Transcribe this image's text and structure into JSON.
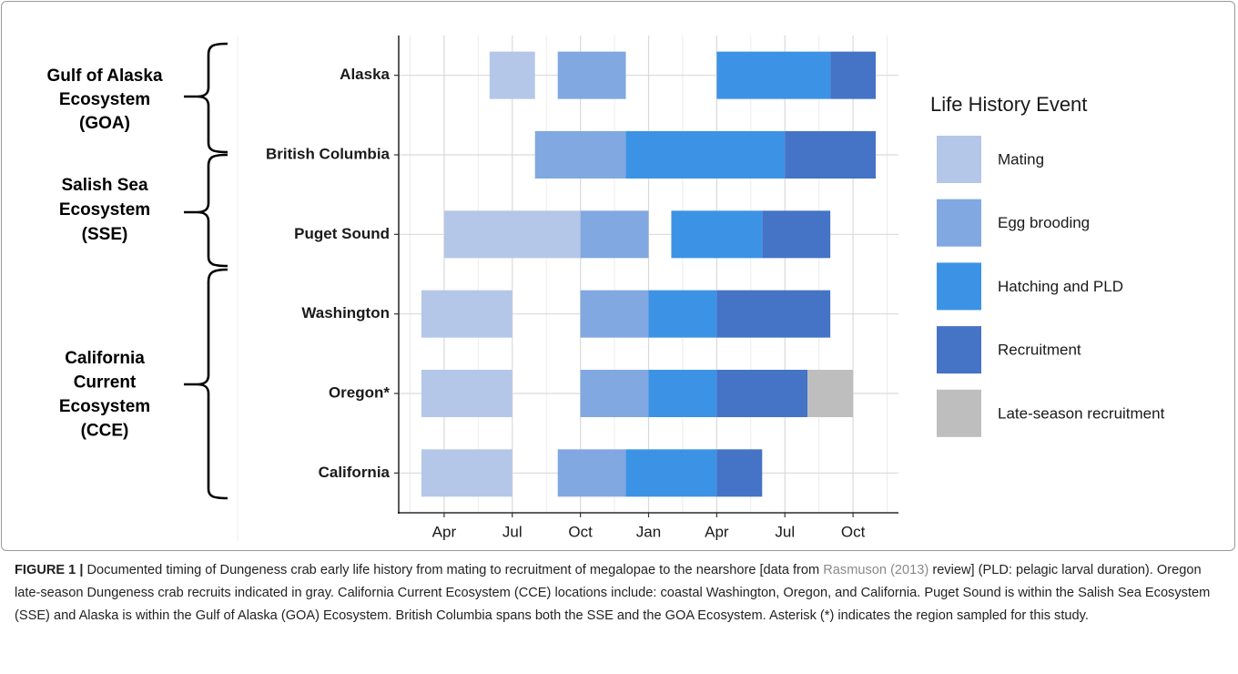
{
  "chart_data": {
    "type": "gantt",
    "categories": [
      "Alaska",
      "British Columbia",
      "Puget Sound",
      "Washington",
      "Oregon*",
      "California"
    ],
    "series": [
      {
        "name": "Mating",
        "color": "#b4c7e8",
        "values": [
          [
            5,
            7
          ],
          null,
          [
            3,
            9
          ],
          [
            2,
            6
          ],
          [
            2,
            6
          ],
          [
            2,
            6
          ]
        ]
      },
      {
        "name": "Egg brooding",
        "color": "#81a8e0",
        "values": [
          [
            8,
            11
          ],
          [
            7,
            11
          ],
          [
            9,
            12
          ],
          [
            9,
            12
          ],
          [
            9,
            12
          ],
          [
            8,
            11
          ]
        ]
      },
      {
        "name": "Hatching and PLD",
        "color": "#3c93e5",
        "values": [
          [
            15,
            20
          ],
          [
            11,
            18
          ],
          [
            13,
            17
          ],
          [
            12,
            15
          ],
          [
            12,
            15
          ],
          [
            11,
            15
          ]
        ]
      },
      {
        "name": "Recruitment",
        "color": "#4573c6",
        "values": [
          [
            20,
            22
          ],
          [
            18,
            22
          ],
          [
            17,
            20
          ],
          [
            15,
            20
          ],
          [
            15,
            19
          ],
          [
            15,
            17
          ]
        ]
      },
      {
        "name": "Late-season recruitment",
        "color": "#bebebe",
        "values": [
          null,
          null,
          null,
          null,
          [
            19,
            21
          ],
          null
        ]
      }
    ],
    "xlim": [
      1,
      23
    ],
    "xticks": [
      {
        "value": 3,
        "label": "Apr"
      },
      {
        "value": 6,
        "label": "Jul"
      },
      {
        "value": 9,
        "label": "Oct"
      },
      {
        "value": 12,
        "label": "Jan"
      },
      {
        "value": 15,
        "label": "Apr"
      },
      {
        "value": 18,
        "label": "Jul"
      },
      {
        "value": 21,
        "label": "Oct"
      }
    ],
    "grid": true,
    "legend_title": "Life History Event",
    "legend_position": "right"
  },
  "groups": [
    {
      "lines": [
        "Gulf of Alaska",
        "Ecosystem",
        "(GOA)"
      ]
    },
    {
      "lines": [
        "Salish Sea",
        "Ecosystem",
        "(SSE)"
      ]
    },
    {
      "lines": [
        "California",
        "Current",
        "Ecosystem",
        "(CCE)"
      ]
    }
  ],
  "caption": {
    "label": "FIGURE 1 |",
    "text_before": "Documented timing of Dungeness crab early life history from mating to recruitment of megalopae to the nearshore [data from",
    "citation": "Rasmuson (2013)",
    "text_after": "review] (PLD: pelagic larval duration). Oregon late-season Dungeness crab recruits indicated in gray. California Current Ecosystem (CCE) locations include: coastal Washington, Oregon, and California. Puget Sound is within the Salish Sea Ecosystem (SSE) and Alaska is within the Gulf of Alaska (GOA) Ecosystem. British Columbia spans both the SSE and the GOA Ecosystem. Asterisk (*) indicates the region sampled for this study."
  }
}
